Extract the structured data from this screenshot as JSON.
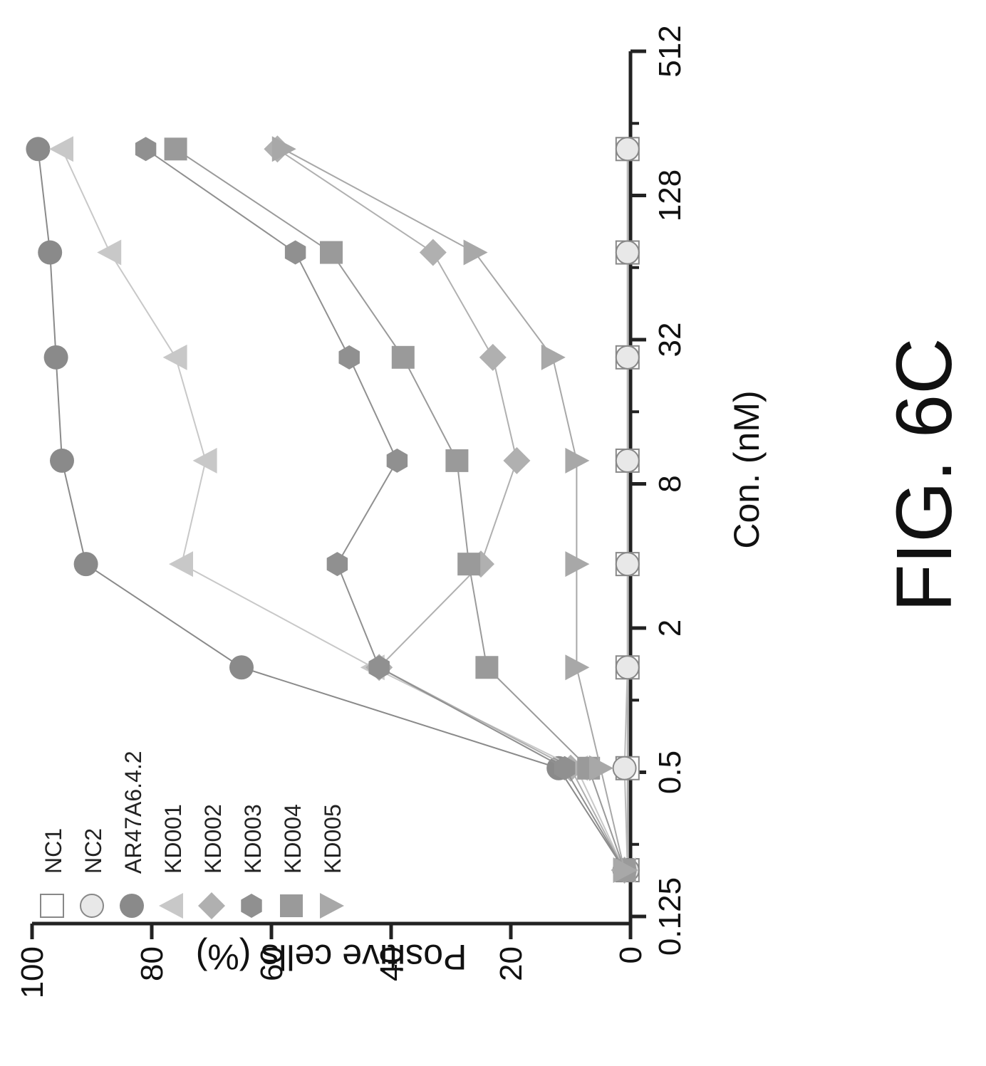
{
  "figure_label": "FIG. 6C",
  "chart_data": {
    "type": "line",
    "xlabel": "Con. (nM)",
    "ylabel": "Positive cells (%)",
    "x_scale": "log2",
    "x_ticks": [
      "0.125",
      "0.5",
      "2",
      "8",
      "32",
      "128",
      "512"
    ],
    "y_ticks": [
      "0",
      "20",
      "40",
      "60",
      "80",
      "100"
    ],
    "xlim": [
      0.125,
      512
    ],
    "ylim": [
      0,
      100
    ],
    "legend_position": "top-left",
    "x": [
      0.195,
      0.52,
      1.37,
      3.7,
      10,
      27,
      74,
      200
    ],
    "series": [
      {
        "name": "NC1",
        "marker": "square-open",
        "color": "#aaaaaa",
        "values": [
          0.5,
          0.5,
          0.5,
          0.5,
          0.5,
          0.5,
          0.5,
          0.5
        ]
      },
      {
        "name": "NC2",
        "marker": "circle-half",
        "color": "#bbbbbb",
        "values": [
          0.5,
          1,
          0.5,
          0.5,
          0.5,
          0.5,
          0.5,
          0.5
        ]
      },
      {
        "name": "AR47A6.4.2",
        "marker": "circle",
        "color": "#8a8a8a",
        "values": [
          1,
          12,
          65,
          91,
          95,
          96,
          97,
          99
        ]
      },
      {
        "name": "KD001",
        "marker": "triangle-up",
        "color": "#c8c8c8",
        "values": [
          1,
          9,
          43,
          75,
          71,
          76,
          87,
          95
        ]
      },
      {
        "name": "KD002",
        "marker": "diamond",
        "color": "#b0b0b0",
        "values": [
          1,
          10,
          42,
          25,
          19,
          23,
          33,
          59
        ]
      },
      {
        "name": "KD003",
        "marker": "hexagon",
        "color": "#909090",
        "values": [
          1,
          11,
          42,
          49,
          39,
          47,
          56,
          81
        ]
      },
      {
        "name": "KD004",
        "marker": "square",
        "color": "#9a9a9a",
        "values": [
          1,
          7,
          24,
          27,
          29,
          38,
          50,
          76
        ]
      },
      {
        "name": "KD005",
        "marker": "triangle-down",
        "color": "#a8a8a8",
        "values": [
          1,
          5,
          9,
          9,
          9,
          13,
          26,
          58
        ]
      }
    ]
  }
}
